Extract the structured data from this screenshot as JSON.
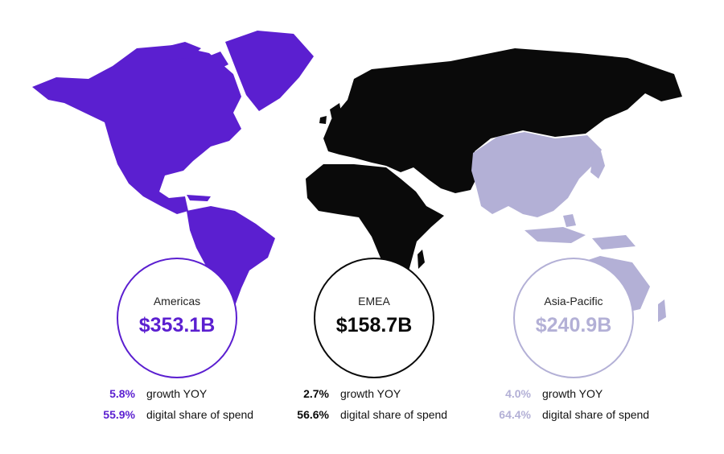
{
  "colors": {
    "americas": "#5b1fd0",
    "emea": "#0a0a0a",
    "asia_pacific": "#b3b0d6"
  },
  "regions": [
    {
      "key": "americas",
      "name": "Americas",
      "value": "$353.1B",
      "growth_pct": "5.8%",
      "growth_label": "growth YOY",
      "share_pct": "55.9%",
      "share_label": "digital share of spend"
    },
    {
      "key": "emea",
      "name": "EMEA",
      "value": "$158.7B",
      "growth_pct": "2.7%",
      "growth_label": "growth YOY",
      "share_pct": "56.6%",
      "share_label": "digital share of spend"
    },
    {
      "key": "asia_pacific",
      "name": "Asia-Pacific",
      "value": "$240.9B",
      "growth_pct": "4.0%",
      "growth_label": "growth YOY",
      "share_pct": "64.4%",
      "share_label": "digital share of spend"
    }
  ]
}
